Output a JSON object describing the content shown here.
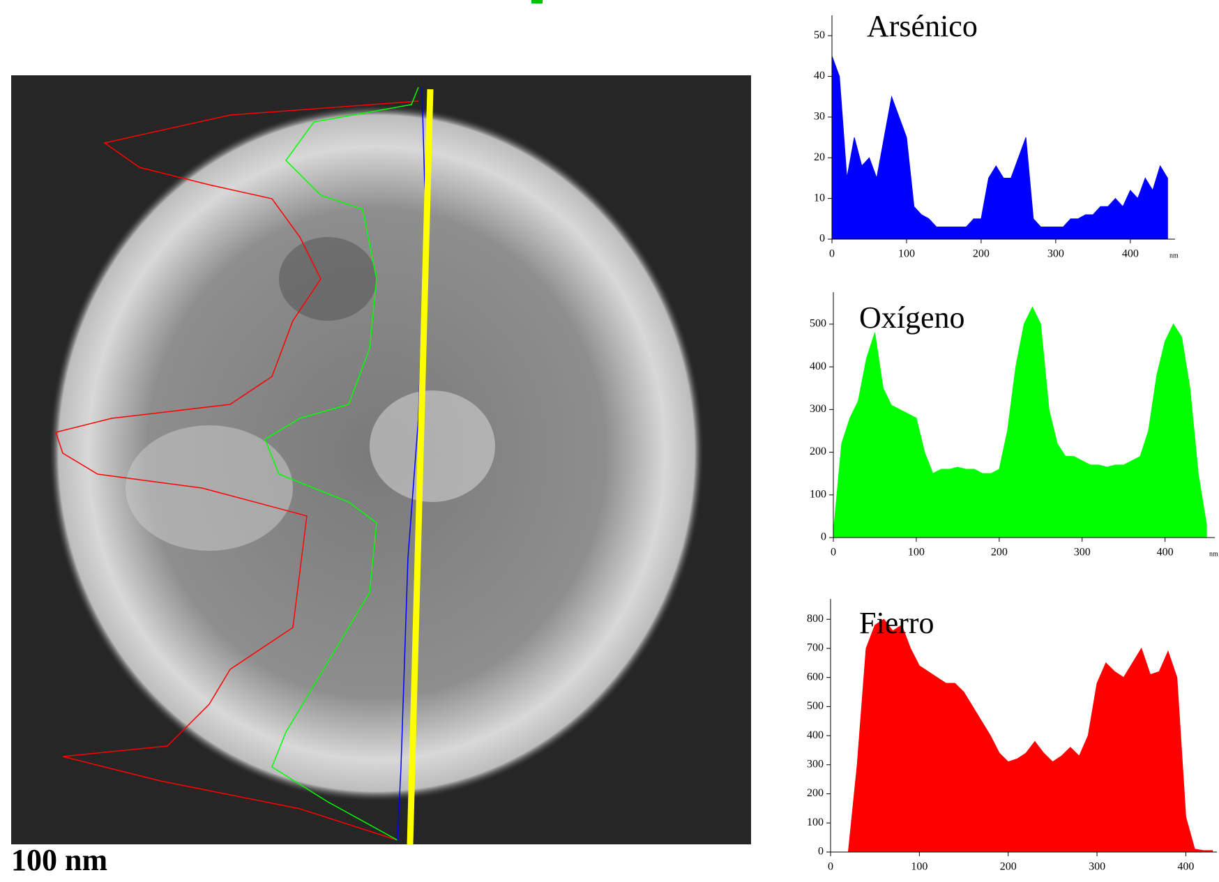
{
  "scale_bar": "100 nm",
  "chart_data": [
    {
      "type": "area",
      "title": "Arsénico",
      "color": "#0000ff",
      "xlabel": "nm",
      "x": [
        0,
        10,
        20,
        30,
        40,
        50,
        60,
        70,
        80,
        90,
        100,
        110,
        120,
        130,
        140,
        150,
        160,
        170,
        180,
        190,
        200,
        210,
        220,
        230,
        240,
        250,
        260,
        270,
        280,
        290,
        300,
        310,
        320,
        330,
        340,
        350,
        360,
        370,
        380,
        390,
        400,
        410,
        420,
        430,
        440,
        450
      ],
      "values": [
        45,
        40,
        15,
        25,
        18,
        20,
        15,
        25,
        35,
        30,
        25,
        8,
        6,
        5,
        3,
        3,
        3,
        3,
        3,
        5,
        5,
        15,
        18,
        15,
        15,
        20,
        25,
        5,
        3,
        3,
        3,
        3,
        5,
        5,
        6,
        6,
        8,
        8,
        10,
        8,
        12,
        10,
        15,
        12,
        18,
        15
      ],
      "xlim": [
        0,
        460
      ],
      "ylim": [
        0,
        55
      ],
      "xticks": [
        0,
        100,
        200,
        300,
        400
      ],
      "yticks": [
        0,
        10,
        20,
        30,
        40,
        50
      ]
    },
    {
      "type": "area",
      "title": "Oxígeno",
      "color": "#00ff00",
      "xlabel": "nm",
      "x": [
        0,
        10,
        20,
        30,
        40,
        50,
        60,
        70,
        80,
        90,
        100,
        110,
        120,
        130,
        140,
        150,
        160,
        170,
        180,
        190,
        200,
        210,
        220,
        230,
        240,
        250,
        260,
        270,
        280,
        290,
        300,
        310,
        320,
        330,
        340,
        350,
        360,
        370,
        380,
        390,
        400,
        410,
        420,
        430,
        440,
        450
      ],
      "values": [
        10,
        220,
        280,
        320,
        420,
        480,
        350,
        310,
        300,
        290,
        280,
        200,
        150,
        160,
        160,
        165,
        160,
        160,
        150,
        150,
        160,
        250,
        400,
        500,
        540,
        500,
        300,
        220,
        190,
        190,
        180,
        170,
        170,
        165,
        170,
        170,
        180,
        190,
        250,
        380,
        460,
        500,
        470,
        350,
        150,
        30
      ],
      "xlim": [
        0,
        460
      ],
      "ylim": [
        0,
        575
      ],
      "xticks": [
        0,
        100,
        200,
        300,
        400
      ],
      "yticks": [
        0,
        100,
        200,
        300,
        400,
        500
      ]
    },
    {
      "type": "area",
      "title": "Fierro",
      "color": "#ff0000",
      "x": [
        0,
        10,
        20,
        30,
        40,
        50,
        60,
        70,
        80,
        90,
        100,
        110,
        120,
        130,
        140,
        150,
        160,
        170,
        180,
        190,
        200,
        210,
        220,
        230,
        240,
        250,
        260,
        270,
        280,
        290,
        300,
        310,
        320,
        330,
        340,
        350,
        360,
        370,
        380,
        390,
        400,
        410,
        420,
        430
      ],
      "values": [
        0,
        0,
        0,
        300,
        700,
        780,
        800,
        760,
        780,
        700,
        640,
        620,
        600,
        580,
        580,
        550,
        500,
        450,
        400,
        340,
        310,
        320,
        340,
        380,
        340,
        310,
        330,
        360,
        330,
        400,
        580,
        650,
        620,
        600,
        650,
        700,
        610,
        620,
        690,
        600,
        120,
        10,
        5,
        5
      ],
      "xlim": [
        0,
        435
      ],
      "ylim": [
        0,
        870
      ],
      "xticks": [
        0,
        100,
        200,
        300,
        400
      ],
      "yticks": [
        0,
        100,
        200,
        300,
        400,
        500,
        600,
        700,
        800
      ]
    }
  ]
}
